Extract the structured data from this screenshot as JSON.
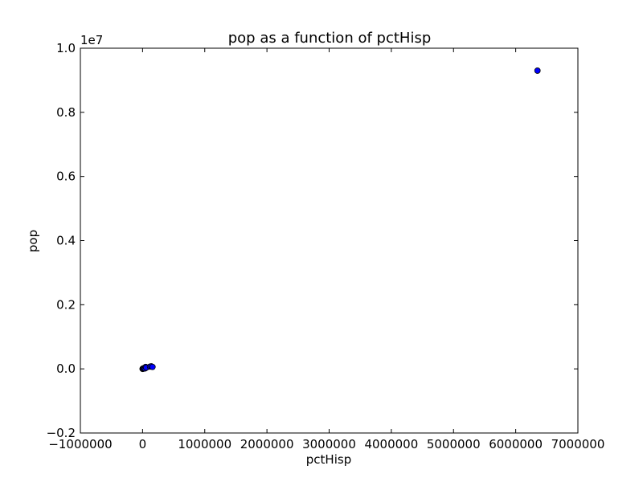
{
  "chart_data": {
    "type": "scatter",
    "title": "pop as a function of pctHisp",
    "xlabel": "pctHisp",
    "ylabel": "pop",
    "y_offset_label": "1e7",
    "xlim": [
      -1000000,
      7000000
    ],
    "ylim": [
      -0.2,
      1.0
    ],
    "x_ticks": [
      -1000000,
      0,
      1000000,
      2000000,
      3000000,
      4000000,
      5000000,
      6000000,
      7000000
    ],
    "x_tick_labels": [
      "−1000000",
      "0",
      "1000000",
      "2000000",
      "3000000",
      "4000000",
      "5000000",
      "6000000",
      "7000000"
    ],
    "y_ticks": [
      -0.2,
      0.0,
      0.2,
      0.4,
      0.6,
      0.8,
      1.0
    ],
    "y_tick_labels": [
      "−0.2",
      "0.0",
      "0.2",
      "0.4",
      "0.6",
      "0.8",
      "1.0"
    ],
    "grid": false,
    "marker_color": "#0000ff",
    "series": [
      {
        "points": [
          {
            "x": 0,
            "y": 0.0
          },
          {
            "x": 5000,
            "y": 0.001
          },
          {
            "x": 10000,
            "y": 0.0005
          },
          {
            "x": 20000,
            "y": 0.002
          },
          {
            "x": 30000,
            "y": 0.003
          },
          {
            "x": 40000,
            "y": 0.0015
          },
          {
            "x": 50000,
            "y": 0.006
          },
          {
            "x": 60000,
            "y": 0.004
          },
          {
            "x": 120000,
            "y": 0.007
          },
          {
            "x": 140000,
            "y": 0.008
          },
          {
            "x": 160000,
            "y": 0.006
          },
          {
            "x": 6350000,
            "y": 0.93
          }
        ]
      }
    ]
  }
}
